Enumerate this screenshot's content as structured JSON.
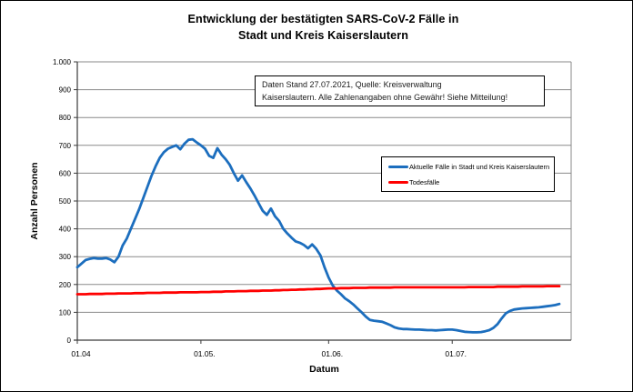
{
  "title": {
    "line1": "Entwicklung der bestätigten SARS-CoV-2 Fälle in",
    "line2": "Stadt und Kreis Kaiserslautern"
  },
  "annotation": {
    "line1": "Daten Stand 27.07.2021, Quelle: Kreisverwaltung",
    "line2": "Kaiserslautern. Alle Zahlenangaben ohne Gewähr! Siehe Mitteilung!"
  },
  "axes": {
    "y_label": "Anzahl Personen",
    "x_label": "Datum"
  },
  "legend": {
    "items": [
      {
        "label": "Aktuelle Fälle in Stadt und Kreis Kaiserslautern",
        "color": "#1C6EBE"
      },
      {
        "label": "Todesfälle",
        "color": "#FF0000"
      }
    ]
  },
  "chart_data": {
    "type": "line",
    "title": "Entwicklung der bestätigten SARS-CoV-2 Fälle in Stadt und Kreis Kaiserslautern",
    "xlabel": "Datum",
    "ylabel": "Anzahl Personen",
    "ylim": [
      0,
      1000
    ],
    "ytick_step": 100,
    "ytick_labels": [
      "0",
      "100",
      "200",
      "300",
      "400",
      "500",
      "600",
      "700",
      "800",
      "900",
      "1.000"
    ],
    "xticks": [
      {
        "label": "01.04",
        "index": 0
      },
      {
        "label": "01.05.",
        "index": 30
      },
      {
        "label": "01.06.",
        "index": 61
      },
      {
        "label": "01.07.",
        "index": 91
      }
    ],
    "grid": "horizontal",
    "legend_position": "inside-right",
    "categories": [
      "01.04",
      "02.04",
      "03.04",
      "04.04",
      "05.04",
      "06.04",
      "07.04",
      "08.04",
      "09.04",
      "10.04",
      "11.04",
      "12.04",
      "13.04",
      "14.04",
      "15.04",
      "16.04",
      "17.04",
      "18.04",
      "19.04",
      "20.04",
      "21.04",
      "22.04",
      "23.04",
      "24.04",
      "25.04",
      "26.04",
      "27.04",
      "28.04",
      "29.04",
      "30.04",
      "01.05",
      "02.05",
      "03.05",
      "04.05",
      "05.05",
      "06.05",
      "07.05",
      "08.05",
      "09.05",
      "10.05",
      "11.05",
      "12.05",
      "13.05",
      "14.05",
      "15.05",
      "16.05",
      "17.05",
      "18.05",
      "19.05",
      "20.05",
      "21.05",
      "22.05",
      "23.05",
      "24.05",
      "25.05",
      "26.05",
      "27.05",
      "28.05",
      "29.05",
      "30.05",
      "31.05",
      "01.06",
      "02.06",
      "03.06",
      "04.06",
      "05.06",
      "06.06",
      "07.06",
      "08.06",
      "09.06",
      "10.06",
      "11.06",
      "12.06",
      "13.06",
      "14.06",
      "15.06",
      "16.06",
      "17.06",
      "18.06",
      "19.06",
      "20.06",
      "21.06",
      "22.06",
      "23.06",
      "24.06",
      "25.06",
      "26.06",
      "27.06",
      "28.06",
      "29.06",
      "30.06",
      "01.07",
      "02.07",
      "03.07",
      "04.07",
      "05.07",
      "06.07",
      "07.07",
      "08.07",
      "09.07",
      "10.07",
      "11.07",
      "12.07",
      "13.07",
      "14.07",
      "15.07",
      "16.07",
      "17.07",
      "18.07",
      "19.07",
      "20.07",
      "21.07",
      "22.07",
      "23.07",
      "24.07",
      "25.07",
      "26.07",
      "27.07"
    ],
    "series": [
      {
        "name": "Aktuelle Fälle in Stadt und Kreis Kaiserslautern",
        "color": "#1C6EBE",
        "values": [
          262,
          275,
          288,
          292,
          295,
          293,
          293,
          295,
          290,
          280,
          300,
          340,
          365,
          400,
          435,
          470,
          510,
          550,
          590,
          625,
          655,
          675,
          688,
          694,
          700,
          686,
          706,
          720,
          722,
          710,
          700,
          688,
          662,
          655,
          690,
          667,
          650,
          630,
          600,
          573,
          592,
          568,
          545,
          520,
          492,
          465,
          450,
          473,
          445,
          428,
          400,
          383,
          368,
          355,
          350,
          342,
          330,
          344,
          328,
          305,
          262,
          225,
          196,
          178,
          165,
          150,
          140,
          128,
          114,
          100,
          85,
          73,
          70,
          68,
          66,
          60,
          54,
          46,
          42,
          40,
          40,
          39,
          38,
          38,
          37,
          36,
          36,
          35,
          36,
          37,
          38,
          38,
          36,
          33,
          30,
          29,
          28,
          28,
          29,
          32,
          36,
          44,
          58,
          78,
          96,
          105,
          110,
          112,
          114,
          115,
          116,
          117,
          118,
          120,
          122,
          124,
          126,
          130
        ]
      },
      {
        "name": "Todesfälle",
        "color": "#FF0000",
        "values": [
          165,
          165,
          165,
          166,
          166,
          166,
          166,
          167,
          167,
          167,
          168,
          168,
          168,
          168,
          169,
          169,
          169,
          170,
          170,
          170,
          170,
          171,
          171,
          171,
          171,
          172,
          172,
          172,
          172,
          172,
          173,
          173,
          173,
          174,
          174,
          174,
          175,
          175,
          175,
          176,
          176,
          176,
          177,
          177,
          177,
          178,
          178,
          178,
          179,
          179,
          180,
          180,
          181,
          181,
          182,
          182,
          183,
          183,
          184,
          184,
          185,
          186,
          186,
          186,
          187,
          187,
          187,
          188,
          188,
          188,
          188,
          189,
          189,
          189,
          189,
          189,
          189,
          190,
          190,
          190,
          190,
          190,
          190,
          190,
          190,
          190,
          190,
          190,
          190,
          190,
          190,
          190,
          190,
          190,
          190,
          191,
          191,
          191,
          191,
          191,
          191,
          191,
          192,
          192,
          192,
          192,
          192,
          192,
          193,
          193,
          193,
          193,
          193,
          193,
          194,
          194,
          194,
          194
        ]
      }
    ]
  },
  "colors": {
    "cases_line": "#1C6EBE",
    "deaths_line": "#FF0000",
    "gridline": "#8a8a8a",
    "axis": "#3a3a3a"
  }
}
